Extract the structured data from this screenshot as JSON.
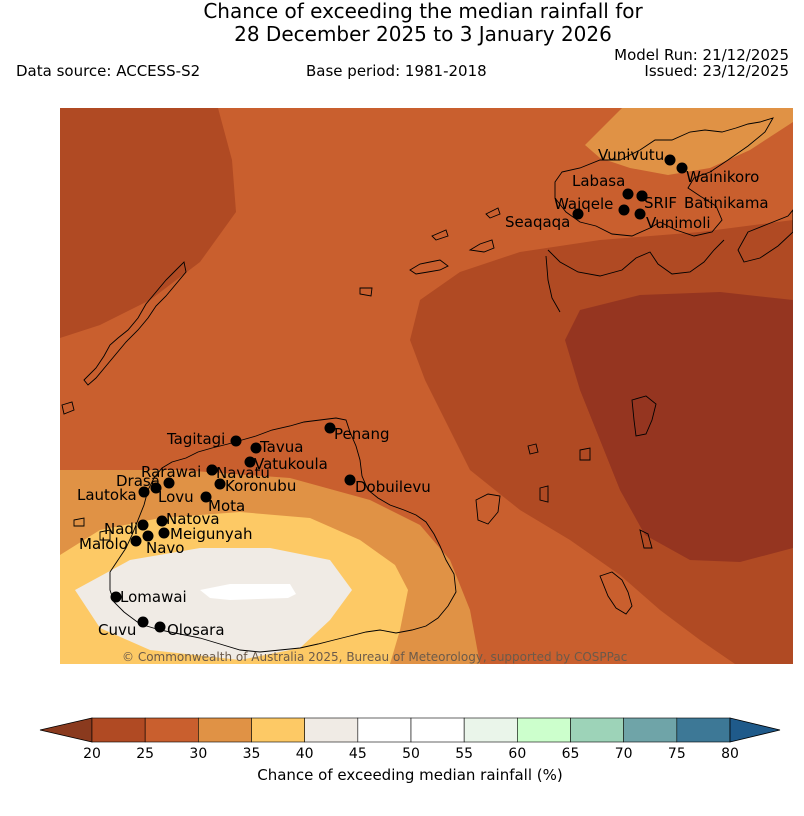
{
  "header": {
    "title_line1": "Chance of exceeding the median rainfall for",
    "title_line2": "28 December 2025 to 3 January 2026",
    "data_source": "Data source: ACCESS-S2",
    "base_period": "Base period: 1981-2018",
    "model_run": "Model Run: 21/12/2025",
    "issued": "Issued: 23/12/2025"
  },
  "map": {
    "copyright": "© Commonwealth of Australia 2025, Bureau of Meteorology, supported by COSPPac",
    "places": [
      {
        "name": "Vunivutu"
      },
      {
        "name": "Wainikoro"
      },
      {
        "name": "Labasa"
      },
      {
        "name": "Waiqele"
      },
      {
        "name": "SRIF"
      },
      {
        "name": "Batinikama"
      },
      {
        "name": "Seaqaqa"
      },
      {
        "name": "Vunimoli"
      },
      {
        "name": "Tagitagi"
      },
      {
        "name": "Penang"
      },
      {
        "name": "Tavua"
      },
      {
        "name": "Vatukoula"
      },
      {
        "name": "Rarawai"
      },
      {
        "name": "Navatu"
      },
      {
        "name": "Drasa"
      },
      {
        "name": "Koronubu"
      },
      {
        "name": "Dobuilevu"
      },
      {
        "name": "Lautoka"
      },
      {
        "name": "Lovu"
      },
      {
        "name": "Mota"
      },
      {
        "name": "Natova"
      },
      {
        "name": "Nadi"
      },
      {
        "name": "Meigunyah"
      },
      {
        "name": "Malolo"
      },
      {
        "name": "Navo"
      },
      {
        "name": "Lomawai"
      },
      {
        "name": "Cuvu"
      },
      {
        "name": "Olosara"
      }
    ]
  },
  "colorbar": {
    "label": "Chance of exceeding median rainfall (%)",
    "ticks": [
      "20",
      "25",
      "30",
      "35",
      "40",
      "45",
      "50",
      "55",
      "60",
      "65",
      "70",
      "75",
      "80"
    ],
    "under_color": "#8a3a1e",
    "over_color": "#1f5a8a",
    "bins": [
      {
        "range": "20-25",
        "color": "#b04a23"
      },
      {
        "range": "25-30",
        "color": "#c95f2e"
      },
      {
        "range": "30-35",
        "color": "#e09245"
      },
      {
        "range": "35-40",
        "color": "#fdc965"
      },
      {
        "range": "40-45",
        "color": "#f0ebe5"
      },
      {
        "range": "45-50",
        "color": "#ffffff"
      },
      {
        "range": "50-55",
        "color": "#ffffff"
      },
      {
        "range": "55-60",
        "color": "#eaf5ea"
      },
      {
        "range": "60-65",
        "color": "#ccffcc"
      },
      {
        "range": "65-70",
        "color": "#9dd3b8"
      },
      {
        "range": "70-75",
        "color": "#6fa4a8"
      },
      {
        "range": "75-80",
        "color": "#3d7896"
      }
    ]
  }
}
